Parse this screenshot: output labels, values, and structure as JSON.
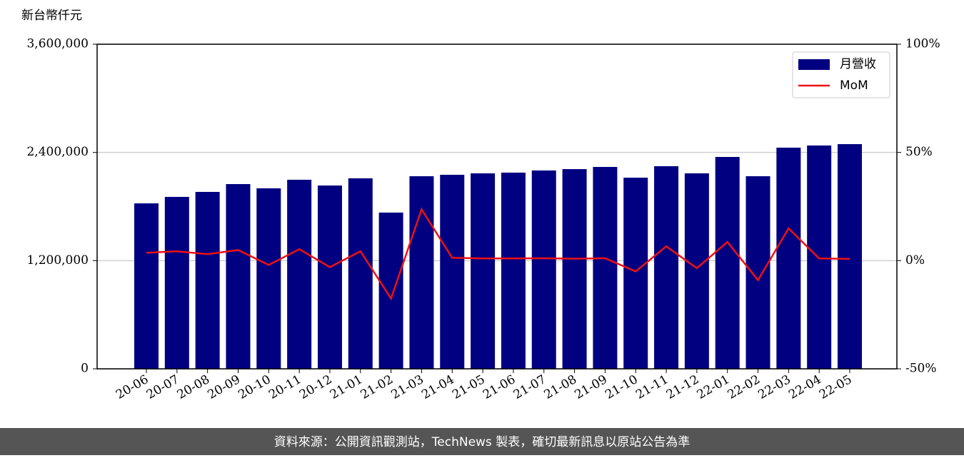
{
  "chart_data": {
    "type": "bar-line",
    "y_label": "新台幣仟元",
    "source": "資料來源：公開資訊觀測站，TechNews 製表，確切最新訊息以原站公告為準",
    "categories": [
      "20-06",
      "20-07",
      "20-08",
      "20-09",
      "20-10",
      "20-11",
      "20-12",
      "21-01",
      "21-02",
      "21-03",
      "21-04",
      "21-05",
      "21-06",
      "21-07",
      "21-08",
      "21-09",
      "21-10",
      "21-11",
      "21-12",
      "22-01",
      "22-02",
      "22-03",
      "22-04",
      "22-05"
    ],
    "series": [
      {
        "name": "月營收",
        "type": "bar",
        "color": "#000080",
        "axis": "y",
        "values": [
          1835000,
          1907000,
          1962000,
          2049000,
          2002000,
          2097000,
          2033000,
          2113000,
          1733000,
          2136000,
          2152000,
          2168000,
          2176000,
          2200000,
          2215000,
          2239000,
          2120000,
          2247000,
          2168000,
          2350000,
          2136000,
          2453000,
          2477000,
          2492000
        ]
      },
      {
        "name": "MoM",
        "type": "line",
        "color": "#ee1111",
        "axis": "y2",
        "values": [
          3.6,
          4.3,
          3.0,
          4.9,
          -2.0,
          5.3,
          -3.0,
          4.3,
          -17.5,
          23.7,
          1.3,
          1.0,
          1.0,
          1.1,
          0.9,
          1.1,
          -5.0,
          6.6,
          -3.5,
          8.6,
          -9.0,
          14.9,
          1.0,
          0.8
        ]
      }
    ],
    "ylim": [
      0,
      3600000
    ],
    "yticks": [
      {
        "value": 0,
        "label": "0"
      },
      {
        "value": 1200000,
        "label": "1,200,000"
      },
      {
        "value": 2400000,
        "label": "2,400,000"
      },
      {
        "value": 3600000,
        "label": "3,600,000"
      }
    ],
    "y2lim": [
      -50,
      100
    ],
    "y2ticks": [
      {
        "value": -50,
        "label": "-50%"
      },
      {
        "value": 0,
        "label": "0%"
      },
      {
        "value": 50,
        "label": "50%"
      },
      {
        "value": 100,
        "label": "100%"
      }
    ],
    "grid": true,
    "legend": "upper right"
  }
}
